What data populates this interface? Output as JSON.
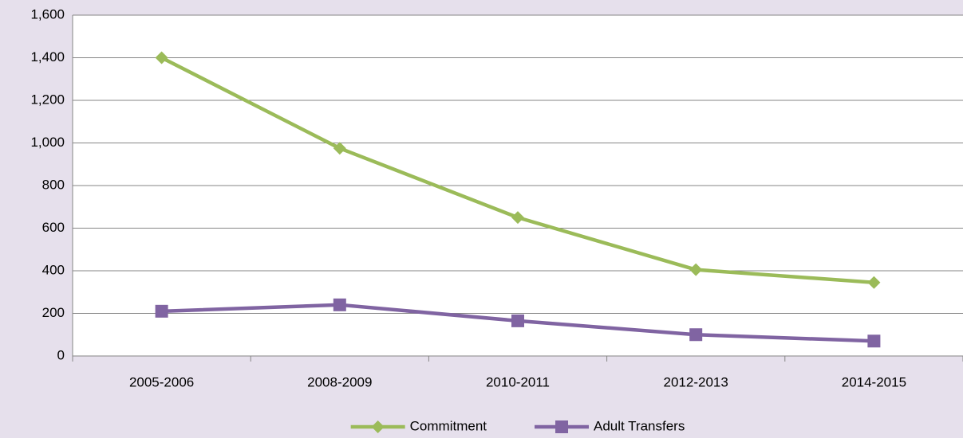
{
  "chart_data": {
    "type": "line",
    "categories": [
      "2005-2006",
      "2008-2009",
      "2010-2011",
      "2012-2013",
      "2014-2015"
    ],
    "series": [
      {
        "name": "Commitment",
        "color": "#9bbb59",
        "marker": "diamond",
        "values": [
          1400,
          975,
          650,
          405,
          345
        ]
      },
      {
        "name": "Adult Transfers",
        "color": "#8064a2",
        "marker": "square",
        "values": [
          210,
          240,
          165,
          100,
          70
        ]
      }
    ],
    "ylim": [
      0,
      1600
    ],
    "yticks": [
      0,
      200,
      400,
      600,
      800,
      {
        "value": 1000,
        "label": "1,000"
      },
      {
        "value": 1200,
        "label": "1,200"
      },
      {
        "value": 1400,
        "label": "1,400"
      },
      {
        "value": 1600,
        "label": "1,600"
      }
    ],
    "grid": true,
    "legend": "bottom"
  }
}
